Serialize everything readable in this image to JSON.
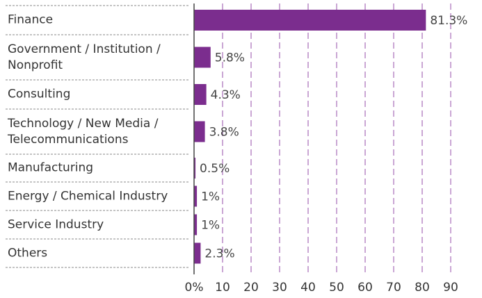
{
  "chart_data": {
    "type": "bar",
    "orientation": "horizontal",
    "categories": [
      "Finance",
      "Government / Institution /\nNonprofit",
      "Consulting",
      "Technology / New Media /\nTelecommunications",
      "Manufacturing",
      "Energy / Chemical Industry",
      "Service Industry",
      "Others"
    ],
    "values": [
      81.3,
      5.8,
      4.3,
      3.8,
      0.5,
      1,
      1,
      2.3
    ],
    "value_labels": [
      "81.3%",
      "5.8%",
      "4.3%",
      "3.8%",
      "0.5%",
      "1%",
      "1%",
      "2.3%"
    ],
    "color": "#7b2d8e",
    "xlim": [
      0,
      90
    ],
    "xticks": [
      {
        "value": 0,
        "label": "0%"
      },
      10,
      20,
      30,
      40,
      50,
      60,
      70,
      80,
      90
    ],
    "grid": true
  }
}
